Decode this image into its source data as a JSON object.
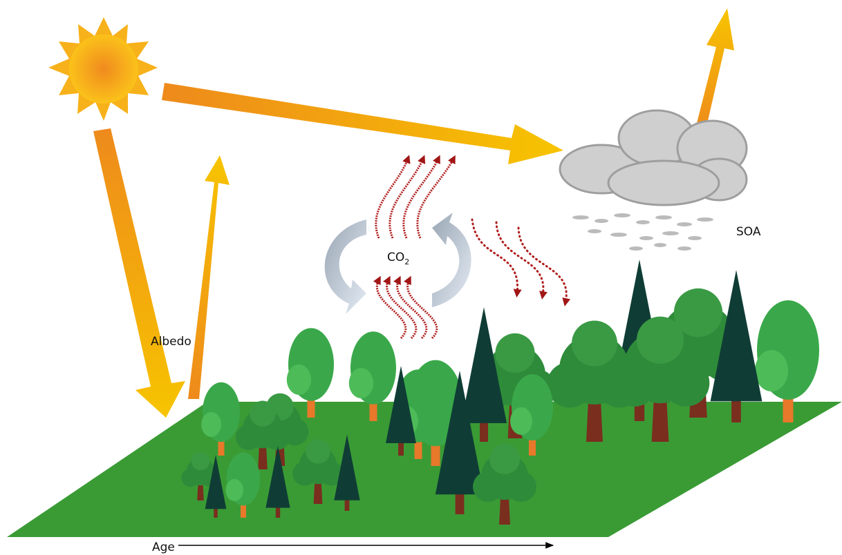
{
  "labels": {
    "albedo": "Albedo",
    "co2": {
      "base": "CO",
      "subscript": "2"
    },
    "soa": "SOA",
    "age": "Age"
  }
}
